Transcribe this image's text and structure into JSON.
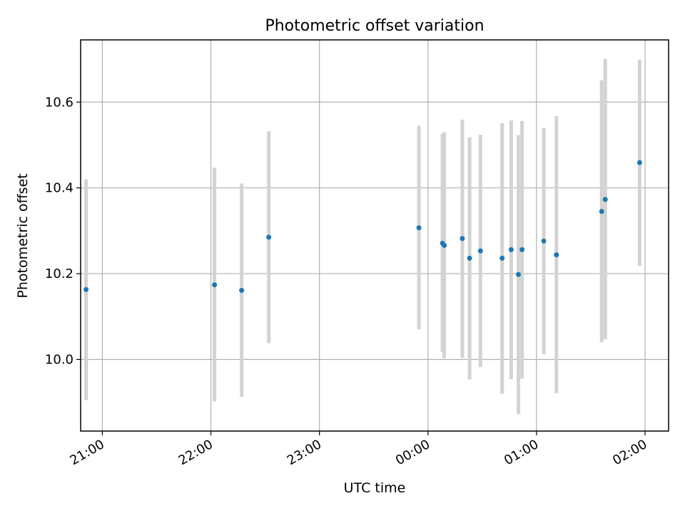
{
  "chart_data": {
    "type": "scatter",
    "title": "Photometric offset variation",
    "xlabel": "UTC time",
    "ylabel": "Photometric offset",
    "grid": true,
    "x_axis": "time",
    "xlim": [
      "20:48",
      "02:13"
    ],
    "ylim": [
      9.833,
      10.745
    ],
    "xticks": [
      "21:00",
      "22:00",
      "23:00",
      "00:00",
      "01:00",
      "02:00"
    ],
    "yticks": [
      10.0,
      10.2,
      10.4,
      10.6
    ],
    "colors": {
      "marker": "#1f77b4",
      "errorbar": "#d3d3d3",
      "grid": "#b0b0b0"
    },
    "series": [
      {
        "points": [
          {
            "x": "20:51",
            "y": 10.163,
            "yerr_low": 9.905,
            "yerr_high": 10.42
          },
          {
            "x": "22:02",
            "y": 10.174,
            "yerr_low": 9.902,
            "yerr_high": 10.447
          },
          {
            "x": "22:17",
            "y": 10.161,
            "yerr_low": 9.913,
            "yerr_high": 10.41
          },
          {
            "x": "22:32",
            "y": 10.285,
            "yerr_low": 10.038,
            "yerr_high": 10.532
          },
          {
            "x": "23:55",
            "y": 10.307,
            "yerr_low": 10.07,
            "yerr_high": 10.545
          },
          {
            "x": "00:08",
            "y": 10.271,
            "yerr_low": 10.018,
            "yerr_high": 10.526
          },
          {
            "x": "00:09",
            "y": 10.266,
            "yerr_low": 10.003,
            "yerr_high": 10.53
          },
          {
            "x": "00:19",
            "y": 10.282,
            "yerr_low": 10.004,
            "yerr_high": 10.559
          },
          {
            "x": "00:23",
            "y": 10.236,
            "yerr_low": 9.953,
            "yerr_high": 10.518
          },
          {
            "x": "00:29",
            "y": 10.253,
            "yerr_low": 9.982,
            "yerr_high": 10.524
          },
          {
            "x": "00:41",
            "y": 10.236,
            "yerr_low": 9.92,
            "yerr_high": 10.551
          },
          {
            "x": "00:46",
            "y": 10.256,
            "yerr_low": 9.954,
            "yerr_high": 10.557
          },
          {
            "x": "00:50",
            "y": 10.198,
            "yerr_low": 9.872,
            "yerr_high": 10.523
          },
          {
            "x": "00:52",
            "y": 10.256,
            "yerr_low": 9.955,
            "yerr_high": 10.556
          },
          {
            "x": "01:04",
            "y": 10.276,
            "yerr_low": 10.012,
            "yerr_high": 10.539
          },
          {
            "x": "01:11",
            "y": 10.244,
            "yerr_low": 9.921,
            "yerr_high": 10.567
          },
          {
            "x": "01:36",
            "y": 10.345,
            "yerr_low": 10.04,
            "yerr_high": 10.651
          },
          {
            "x": "01:38",
            "y": 10.373,
            "yerr_low": 10.047,
            "yerr_high": 10.701
          },
          {
            "x": "01:57",
            "y": 10.459,
            "yerr_low": 10.218,
            "yerr_high": 10.699
          }
        ]
      }
    ]
  }
}
